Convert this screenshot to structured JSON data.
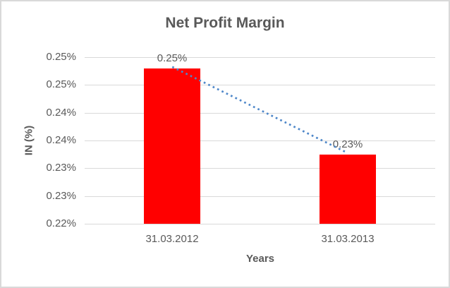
{
  "frame": {
    "background": "#FFFFFF",
    "border_color": "#D9D9D9"
  },
  "chart_data": {
    "type": "bar",
    "title": "Net Profit Margin",
    "xlabel": "Years",
    "ylabel": "IN (%)",
    "categories": [
      "31.03.2012",
      "31.03.2013"
    ],
    "series": [
      {
        "name": "Net Profit Margin",
        "color": "#FF0000",
        "values": [
          0.25,
          0.2345
        ],
        "data_labels": [
          "0.25%",
          "0.23%"
        ]
      }
    ],
    "trendline": {
      "type": "linear",
      "style": "dotted",
      "color": "#4E87C9"
    },
    "y_axis": {
      "min": 0.222,
      "max": 0.252,
      "tick_labels_top_to_bottom": [
        "0.25%",
        "0.25%",
        "0.24%",
        "0.24%",
        "0.23%",
        "0.23%",
        "0.22%"
      ]
    },
    "grid": true,
    "legend": "none",
    "text_color": "#595959",
    "gridline_color": "#D9D9D9"
  }
}
